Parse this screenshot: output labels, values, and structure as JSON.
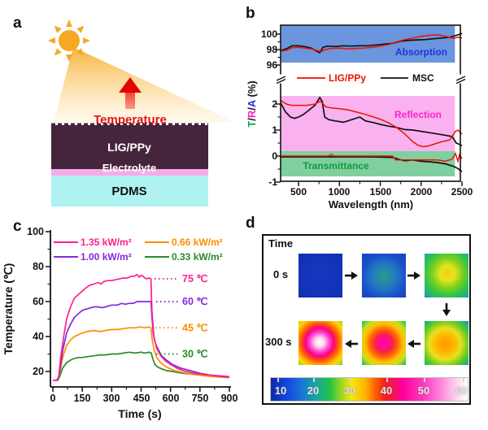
{
  "panels": {
    "a": {
      "label": "a",
      "temperature_label": "Temperature",
      "temperature_color": "#e81111",
      "sun_color": "#f7a823",
      "layers": [
        {
          "name": "LIG/PPy",
          "color": "#44253c",
          "text_color": "#ffffff"
        },
        {
          "name": "Electrolyte",
          "color": "#f6aae6",
          "text_color": "#ffffff"
        },
        {
          "name": "PDMS",
          "color": "#aef2f2",
          "text_color": "#111111"
        }
      ]
    },
    "b": {
      "label": "b"
    },
    "c": {
      "label": "c"
    },
    "d": {
      "label": "d"
    }
  },
  "chart_data": [
    {
      "type": "line",
      "panel": "b",
      "xlabel": "Wavelength (nm)",
      "ylabel": "T/R/A (%)",
      "ylabel_parts": [
        {
          "text": "T",
          "color": "#00a650"
        },
        {
          "text": "/",
          "color": "#111111"
        },
        {
          "text": "R",
          "color": "#ff22cc"
        },
        {
          "text": "/",
          "color": "#111111"
        },
        {
          "text": "A",
          "color": "#2233dd"
        },
        {
          "text": " (%)",
          "color": "#111111"
        }
      ],
      "x_range": [
        280,
        2500
      ],
      "x_tick_labels": [
        "500",
        "1000",
        "1500",
        "2000",
        "2500"
      ],
      "broken_y_axis": true,
      "upper_y_range": [
        96,
        100.5
      ],
      "upper_y_tick_labels": [
        "100",
        "98",
        "96"
      ],
      "lower_y_range": [
        -1,
        2.3
      ],
      "lower_y_tick_labels": [
        "2",
        "1",
        "0",
        "-1"
      ],
      "bands": [
        {
          "label": "Absorption",
          "color": "#6b95dc",
          "text_color": "#2233dd",
          "range_pct": [
            96.3,
            100.5
          ]
        },
        {
          "label": "Reflection",
          "color": "#f9b2ef",
          "text_color": "#ff22cc",
          "range_pct": [
            0.25,
            2.3
          ]
        },
        {
          "label": "Transmittance",
          "color": "#7fcf9f",
          "text_color": "#0f9c40",
          "range_pct": [
            -0.75,
            0.25
          ]
        }
      ],
      "legend": [
        {
          "label": "LIG/PPy",
          "color": "#ee1100"
        },
        {
          "label": "MSC",
          "color": "#111111"
        }
      ],
      "series": [
        {
          "name": "Absorption LIG/PPy",
          "group": "absorption",
          "sample": "LIG/PPy",
          "color": "#ee1100",
          "x": [
            280,
            350,
            420,
            500,
            570,
            650,
            720,
            780,
            820,
            900,
            1000,
            1100,
            1200,
            1300,
            1400,
            1500,
            1600,
            1700,
            1800,
            1900,
            2000,
            2100,
            2200,
            2300,
            2400,
            2450,
            2500
          ],
          "y": [
            97.8,
            97.9,
            98.25,
            98.3,
            98.2,
            98.1,
            97.9,
            97.7,
            98.0,
            98.15,
            98.2,
            98.1,
            98.15,
            98.2,
            98.3,
            98.45,
            98.65,
            99.0,
            99.3,
            99.5,
            99.7,
            99.85,
            99.9,
            99.7,
            99.45,
            99.6,
            99.5
          ]
        },
        {
          "name": "Absorption MSC",
          "group": "absorption",
          "sample": "MSC",
          "color": "#111111",
          "x": [
            280,
            350,
            420,
            500,
            570,
            650,
            720,
            760,
            800,
            850,
            950,
            1050,
            1150,
            1250,
            1350,
            1450,
            1550,
            1650,
            1750,
            1850,
            1950,
            2050,
            2150,
            2250,
            2350,
            2450,
            2500
          ],
          "y": [
            97.85,
            98.1,
            98.5,
            98.5,
            98.4,
            98.2,
            97.8,
            97.6,
            98.3,
            98.45,
            98.4,
            98.5,
            98.45,
            98.5,
            98.5,
            98.6,
            98.7,
            98.8,
            99.1,
            99.2,
            99.25,
            99.3,
            99.4,
            99.5,
            99.6,
            99.9,
            100.1
          ]
        },
        {
          "name": "Reflection LIG/PPy",
          "group": "reflection",
          "sample": "LIG/PPy",
          "color": "#ee1100",
          "x": [
            280,
            350,
            420,
            500,
            600,
            700,
            760,
            790,
            830,
            900,
            1000,
            1100,
            1200,
            1300,
            1400,
            1500,
            1600,
            1700,
            1800,
            1900,
            1960,
            2020,
            2080,
            2150,
            2250,
            2350,
            2420,
            2450,
            2500
          ],
          "y": [
            2.15,
            2.0,
            1.95,
            1.95,
            1.95,
            2.0,
            2.1,
            2.05,
            1.9,
            1.85,
            1.82,
            1.78,
            1.7,
            1.62,
            1.52,
            1.42,
            1.28,
            1.1,
            0.85,
            0.55,
            0.42,
            0.36,
            0.38,
            0.45,
            0.55,
            0.62,
            0.95,
            1.0,
            0.85
          ]
        },
        {
          "name": "Reflection MSC",
          "group": "reflection",
          "sample": "MSC",
          "color": "#111111",
          "x": [
            280,
            340,
            400,
            450,
            500,
            560,
            620,
            700,
            760,
            790,
            820,
            870,
            950,
            1050,
            1150,
            1250,
            1320,
            1400,
            1500,
            1600,
            1700,
            1800,
            1900,
            2000,
            2100,
            2200,
            2300,
            2380,
            2430,
            2470,
            2500
          ],
          "y": [
            2.05,
            1.7,
            1.5,
            1.45,
            1.5,
            1.6,
            1.75,
            1.95,
            2.25,
            2.1,
            1.5,
            1.4,
            1.35,
            1.3,
            1.4,
            1.5,
            1.35,
            1.3,
            1.22,
            1.15,
            1.1,
            1.02,
            1.0,
            0.95,
            0.9,
            0.85,
            0.8,
            0.75,
            0.5,
            0.45,
            0.4
          ]
        },
        {
          "name": "Transmittance LIG/PPy",
          "group": "transmittance",
          "sample": "LIG/PPy",
          "color": "#ee1100",
          "x": [
            280,
            600,
            870,
            890,
            910,
            930,
            1200,
            1500,
            1650,
            1690,
            1800,
            2000,
            2200,
            2300,
            2380,
            2420,
            2450,
            2470,
            2500
          ],
          "y": [
            0.0,
            0.0,
            0.0,
            0.05,
            0.05,
            0.0,
            0.0,
            0.0,
            0.0,
            -0.15,
            -0.15,
            -0.15,
            -0.15,
            -0.2,
            -0.12,
            0.1,
            -0.2,
            0.05,
            -0.1
          ]
        },
        {
          "name": "Transmittance MSC",
          "group": "transmittance",
          "sample": "MSC",
          "color": "#111111",
          "x": [
            280,
            600,
            1000,
            1400,
            1650,
            1720,
            1800,
            1900,
            2000,
            2100,
            2200,
            2300,
            2400,
            2450,
            2500
          ],
          "y": [
            -0.03,
            -0.03,
            -0.03,
            -0.03,
            -0.05,
            -0.12,
            -0.18,
            -0.15,
            -0.2,
            -0.22,
            -0.25,
            -0.3,
            -0.4,
            -0.48,
            -0.6
          ]
        }
      ]
    },
    {
      "type": "line",
      "panel": "c",
      "xlabel": "Time (s)",
      "ylabel": "Temperature (℃)",
      "x_tick_labels": [
        "0",
        "150",
        "300",
        "450",
        "600",
        "750",
        "900"
      ],
      "y_tick_labels": [
        "100",
        "80",
        "60",
        "40",
        "20"
      ],
      "xlim": [
        0,
        900
      ],
      "ylim": [
        11,
        100
      ],
      "legend": [
        {
          "label": "1.35 kW/m²",
          "color": "#ff1f8f"
        },
        {
          "label": "1.00 kW/m²",
          "color": "#8428e0"
        },
        {
          "label": "0.66 kW/m²",
          "color": "#ff8c00"
        },
        {
          "label": "0.33 kW/m²",
          "color": "#268c26"
        }
      ],
      "annotations": [
        {
          "text": "75 ℃",
          "color": "#ff1f8f",
          "value": 75
        },
        {
          "text": "60 ℃",
          "color": "#8428e0",
          "value": 60
        },
        {
          "text": "45 ℃",
          "color": "#ff8c00",
          "value": 45
        },
        {
          "text": "30 ℃",
          "color": "#268c26",
          "value": 30
        }
      ],
      "series": [
        {
          "name": "1.35 kW/m²",
          "color": "#ff1f8f",
          "x": [
            0,
            20,
            30,
            40,
            55,
            70,
            90,
            110,
            130,
            150,
            170,
            190,
            210,
            230,
            245,
            260,
            280,
            300,
            320,
            340,
            360,
            380,
            400,
            415,
            430,
            440,
            450,
            460,
            470,
            480,
            490,
            500,
            505,
            515,
            530,
            550,
            575,
            600,
            640,
            680,
            720,
            760,
            800,
            850,
            900
          ],
          "y": [
            15,
            15,
            17,
            28,
            40,
            50,
            57,
            62,
            64,
            66,
            68,
            69.5,
            70,
            71,
            70,
            71.5,
            72,
            72,
            72.5,
            73,
            73.5,
            73.5,
            74.5,
            74.5,
            75.5,
            74,
            75,
            74.5,
            73.5,
            73,
            73.5,
            73,
            55,
            40,
            33,
            29,
            26,
            24,
            21.5,
            20,
            19,
            18.5,
            18,
            17.5,
            17
          ]
        },
        {
          "name": "1.00 kW/m²",
          "color": "#8428e0",
          "x": [
            0,
            25,
            35,
            50,
            70,
            90,
            110,
            130,
            150,
            180,
            210,
            230,
            250,
            270,
            300,
            330,
            350,
            370,
            390,
            410,
            430,
            450,
            470,
            490,
            500,
            506,
            512,
            520,
            535,
            555,
            580,
            610,
            650,
            700,
            750,
            800,
            850,
            900
          ],
          "y": [
            15,
            15,
            20,
            32,
            42,
            47,
            51,
            53,
            55,
            56,
            57,
            57,
            56.5,
            57,
            58,
            58,
            59,
            58.5,
            59,
            59,
            60,
            60,
            60,
            60,
            60,
            50,
            42,
            37,
            33,
            29,
            26.5,
            24,
            22,
            20.5,
            19,
            18,
            17.3,
            16.8
          ]
        },
        {
          "name": "0.66 kW/m²",
          "color": "#ff8c00",
          "x": [
            0,
            25,
            35,
            50,
            70,
            90,
            110,
            130,
            150,
            180,
            210,
            230,
            250,
            270,
            300,
            330,
            360,
            390,
            420,
            450,
            470,
            490,
            500,
            507,
            517,
            530,
            550,
            580,
            620,
            660,
            700,
            750,
            800,
            850,
            900
          ],
          "y": [
            15,
            15,
            19,
            28,
            35,
            38,
            40,
            41,
            42,
            43,
            43.5,
            43,
            43,
            43.5,
            44,
            44,
            44.5,
            45,
            45,
            45.5,
            45,
            45.5,
            45,
            38,
            32,
            28,
            25,
            22.5,
            20.5,
            19.5,
            18.5,
            17.8,
            17.2,
            16.8,
            16.5
          ]
        },
        {
          "name": "0.33 kW/m²",
          "color": "#268c26",
          "x": [
            0,
            25,
            35,
            50,
            70,
            90,
            110,
            130,
            150,
            180,
            210,
            240,
            270,
            300,
            330,
            360,
            390,
            420,
            450,
            470,
            490,
            502,
            510,
            520,
            535,
            555,
            580,
            620,
            660,
            700,
            750,
            800,
            850,
            900
          ],
          "y": [
            15,
            15,
            17,
            22,
            25,
            26.5,
            27.5,
            28,
            28,
            28.5,
            29,
            29.5,
            29.5,
            30,
            30,
            30.5,
            31,
            30.5,
            31,
            30.5,
            31,
            30.5,
            27,
            24,
            22.5,
            21.5,
            20.5,
            19.8,
            19,
            18.5,
            18,
            17.5,
            17.2,
            16.8
          ]
        }
      ]
    },
    {
      "type": "heatmap",
      "panel": "d",
      "title": "Time",
      "row_labels": [
        "0 s",
        "300 s"
      ],
      "colorbar": {
        "min": 10,
        "max": 60,
        "tick_labels": [
          "10",
          "20",
          "30",
          "40",
          "50",
          "60"
        ]
      },
      "frames": [
        {
          "time": "0 s",
          "center_temps_approx": [
            12,
            20,
            35
          ]
        },
        {
          "time": "300 s",
          "center_temps_approx": [
            60,
            52,
            42
          ]
        }
      ]
    }
  ]
}
